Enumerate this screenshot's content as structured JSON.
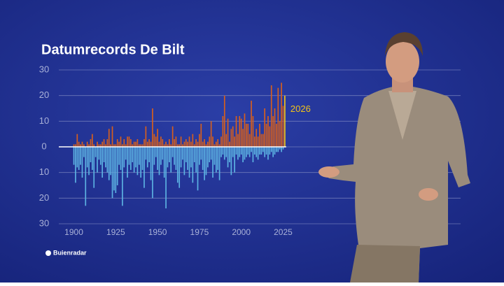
{
  "chart_data": {
    "type": "bar",
    "title": "Datumrecords De Bilt",
    "x": [
      1900,
      1901,
      1902,
      1903,
      1904,
      1905,
      1906,
      1907,
      1908,
      1909,
      1910,
      1911,
      1912,
      1913,
      1914,
      1915,
      1916,
      1917,
      1918,
      1919,
      1920,
      1921,
      1922,
      1923,
      1924,
      1925,
      1926,
      1927,
      1928,
      1929,
      1930,
      1931,
      1932,
      1933,
      1934,
      1935,
      1936,
      1937,
      1938,
      1939,
      1940,
      1941,
      1942,
      1943,
      1944,
      1945,
      1946,
      1947,
      1948,
      1949,
      1950,
      1951,
      1952,
      1953,
      1954,
      1955,
      1956,
      1957,
      1958,
      1959,
      1960,
      1961,
      1962,
      1963,
      1964,
      1965,
      1966,
      1967,
      1968,
      1969,
      1970,
      1971,
      1972,
      1973,
      1974,
      1975,
      1976,
      1977,
      1978,
      1979,
      1980,
      1981,
      1982,
      1983,
      1984,
      1985,
      1986,
      1987,
      1988,
      1989,
      1990,
      1991,
      1992,
      1993,
      1994,
      1995,
      1996,
      1997,
      1998,
      1999,
      2000,
      2001,
      2002,
      2003,
      2004,
      2005,
      2006,
      2007,
      2008,
      2009,
      2010,
      2011,
      2012,
      2013,
      2014,
      2015,
      2016,
      2017,
      2018,
      2019,
      2020,
      2021,
      2022,
      2023,
      2024,
      2025,
      2026
    ],
    "series": [
      {
        "color": "#d65f1d",
        "values": [
          1,
          1,
          5,
          2,
          1,
          2,
          1,
          0,
          2,
          1,
          3,
          5,
          1,
          0,
          2,
          1,
          1,
          2,
          3,
          1,
          3,
          7,
          1,
          8,
          1,
          1,
          3,
          2,
          4,
          1,
          3,
          1,
          4,
          4,
          3,
          1,
          2,
          2,
          3,
          1,
          1,
          1,
          3,
          8,
          2,
          3,
          2,
          15,
          5,
          4,
          7,
          2,
          4,
          3,
          1,
          2,
          1,
          3,
          1,
          8,
          3,
          4,
          1,
          1,
          4,
          1,
          2,
          3,
          2,
          4,
          2,
          5,
          1,
          3,
          2,
          5,
          9,
          2,
          3,
          1,
          2,
          4,
          10,
          4,
          1,
          2,
          3,
          1,
          4,
          12,
          20,
          5,
          11,
          2,
          7,
          8,
          4,
          12,
          5,
          12,
          11,
          7,
          13,
          9,
          9,
          5,
          18,
          12,
          4,
          7,
          4,
          9,
          5,
          5,
          15,
          9,
          12,
          8,
          24,
          12,
          15,
          9,
          23,
          10,
          25,
          16,
          20
        ]
      },
      {
        "color": "#5cb2e2",
        "values": [
          -7,
          -14,
          -8,
          -9,
          -7,
          -12,
          -4,
          -23,
          -8,
          -11,
          -6,
          -9,
          -16,
          -4,
          -10,
          -5,
          -7,
          -12,
          -6,
          -8,
          -10,
          -13,
          -11,
          -20,
          -17,
          -18,
          -15,
          -7,
          -9,
          -23,
          -8,
          -5,
          -12,
          -7,
          -9,
          -6,
          -10,
          -8,
          -11,
          -7,
          -12,
          -9,
          -16,
          -5,
          -8,
          -6,
          -13,
          -20,
          -7,
          -4,
          -9,
          -11,
          -7,
          -5,
          -12,
          -24,
          -8,
          -6,
          -10,
          -4,
          -7,
          -9,
          -14,
          -16,
          -8,
          -5,
          -11,
          -6,
          -9,
          -12,
          -8,
          -14,
          -6,
          -10,
          -17,
          -7,
          -5,
          -9,
          -13,
          -11,
          -8,
          -6,
          -5,
          -12,
          -7,
          -10,
          -9,
          -13,
          -4,
          -3,
          -5,
          -4,
          -8,
          -6,
          -11,
          -4,
          -10,
          -3,
          -5,
          -4,
          -3,
          -6,
          -5,
          -4,
          -3,
          -4,
          -2,
          -6,
          -3,
          -4,
          -5,
          -3,
          -3,
          -2,
          -4,
          -3,
          -5,
          -3,
          -2,
          -4,
          -3,
          -2,
          -2,
          -1,
          -2,
          -1,
          0
        ]
      }
    ],
    "annotation": "2026",
    "highlight_color": "#f2c318",
    "xlim": [
      1891,
      2131
    ],
    "xticks": [
      1900,
      1925,
      1950,
      1975,
      2000,
      2025
    ],
    "ylim": [
      -30,
      30
    ],
    "yticks": [
      {
        "value": -30,
        "label": "30"
      },
      {
        "value": -20,
        "label": "20"
      },
      {
        "value": -10,
        "label": "10"
      },
      0,
      10,
      20,
      30
    ],
    "grid": true
  },
  "logo": "Buienradar"
}
